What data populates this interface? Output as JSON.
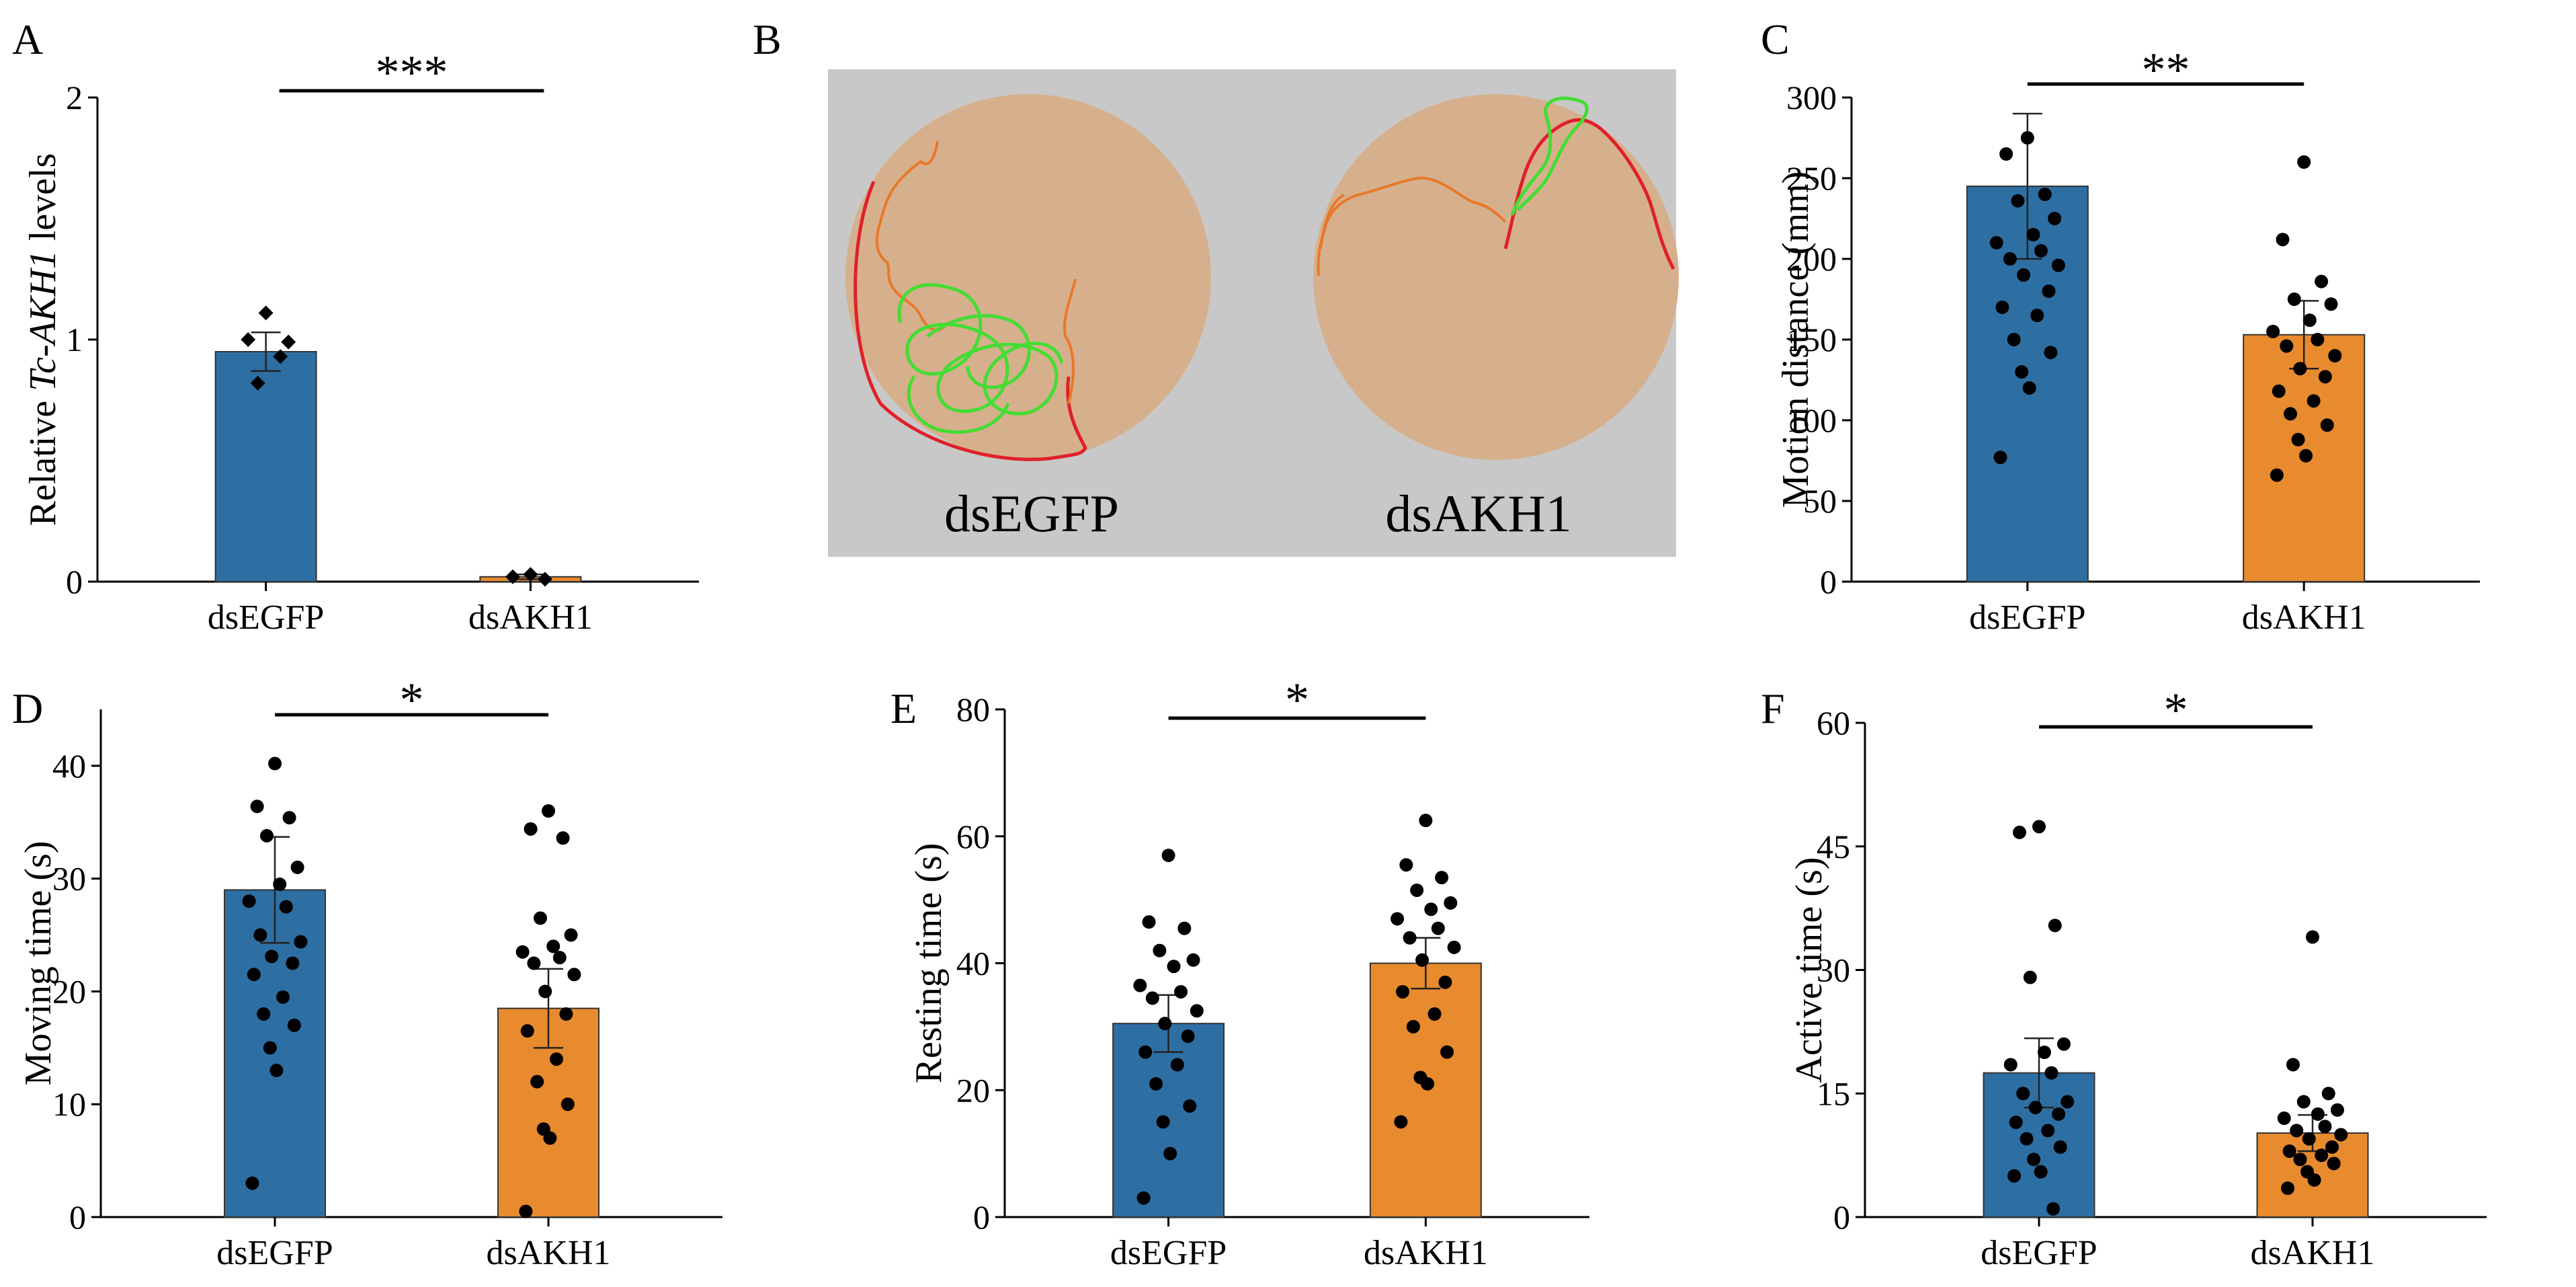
{
  "colors": {
    "dsEGFP": "#2e6fa3",
    "dsAKH1": "#e88a2e",
    "arena_bg": "#c8c8c8",
    "arena_floor": "#d6b08c",
    "track_green": "#44dd33",
    "track_orange": "#e8782a",
    "track_red": "#e0202a"
  },
  "chart_data": [
    {
      "panel": "A",
      "type": "bar",
      "categories": [
        "dsEGFP",
        "dsAKH1"
      ],
      "values": [
        0.95,
        0.02
      ],
      "errors": [
        0.08,
        0.01
      ],
      "ylabel_pre": "Relative ",
      "ylabel_italic": "Tc-AKH1",
      "ylabel_post": "  levels",
      "ylim": [
        0,
        2
      ],
      "yticks": [
        0,
        1,
        2
      ],
      "significance": "***",
      "points": [
        [
          1.11,
          1.0,
          0.93,
          0.82,
          0.99
        ],
        [
          0.03,
          0.02,
          0.01
        ]
      ],
      "marker": "diamond"
    },
    {
      "panel": "C",
      "type": "bar",
      "categories": [
        "dsEGFP",
        "dsAKH1"
      ],
      "values": [
        245,
        153
      ],
      "errors": [
        45,
        21
      ],
      "ylabel": "Motion distance (mm)",
      "ylim": [
        0,
        300
      ],
      "yticks": [
        0,
        50,
        100,
        150,
        200,
        250,
        300
      ],
      "significance": "**",
      "points": [
        [
          275,
          265,
          240,
          236,
          225,
          215,
          210,
          205,
          200,
          196,
          190,
          180,
          170,
          165,
          150,
          142,
          130,
          120,
          77
        ],
        [
          260,
          212,
          186,
          175,
          172,
          162,
          155,
          150,
          146,
          140,
          132,
          127,
          118,
          112,
          104,
          97,
          88,
          78,
          66
        ]
      ],
      "marker": "circle"
    },
    {
      "panel": "D",
      "type": "bar",
      "categories": [
        "dsEGFP",
        "dsAKH1"
      ],
      "values": [
        29,
        18.5
      ],
      "errors": [
        4.7,
        3.5
      ],
      "ylabel": "Moving time (s)",
      "ylim": [
        0,
        45
      ],
      "yticks": [
        0,
        10,
        20,
        30,
        40
      ],
      "significance": "*",
      "points": [
        [
          40.2,
          36.4,
          35.4,
          33.8,
          31.0,
          29.5,
          28.0,
          27.5,
          25.0,
          24.4,
          23.1,
          22.5,
          21.5,
          19.5,
          18.0,
          17.0,
          15.0,
          13.0,
          3.0
        ],
        [
          36.0,
          34.4,
          33.6,
          26.5,
          25.0,
          24.0,
          23.5,
          23.0,
          22.5,
          21.5,
          20.0,
          18.0,
          16.5,
          14.0,
          12.0,
          10.0,
          7.8,
          7.0,
          0.5
        ]
      ],
      "marker": "circle"
    },
    {
      "panel": "E",
      "type": "bar",
      "categories": [
        "dsEGFP",
        "dsAKH1"
      ],
      "values": [
        30.5,
        40
      ],
      "errors": [
        4.5,
        4
      ],
      "ylabel": "Resting time (s)",
      "ylim": [
        0,
        80
      ],
      "yticks": [
        0,
        20,
        40,
        60,
        80
      ],
      "significance": "*",
      "points": [
        [
          57.0,
          46.5,
          45.5,
          42.0,
          40.5,
          39.5,
          36.5,
          35.5,
          34.5,
          32.5,
          30.5,
          28.5,
          26.0,
          24.0,
          21.0,
          17.5,
          15.0,
          10.0,
          3.0
        ],
        [
          62.5,
          55.5,
          53.5,
          51.5,
          49.5,
          48.5,
          47.0,
          45.5,
          44.0,
          42.5,
          40.5,
          37.0,
          35.5,
          32.0,
          30.0,
          26.0,
          22.0,
          21.0,
          15.0
        ]
      ],
      "marker": "circle"
    },
    {
      "panel": "F",
      "type": "bar",
      "categories": [
        "dsEGFP",
        "dsAKH1"
      ],
      "values": [
        17.5,
        10.2
      ],
      "errors": [
        4.2,
        2.2
      ],
      "ylabel": "Active time (s)",
      "ylim": [
        0,
        60
      ],
      "yticks": [
        0,
        15,
        30,
        45,
        60
      ],
      "significance": "*",
      "points": [
        [
          47.4,
          46.7,
          35.4,
          29.1,
          21.0,
          20.0,
          18.5,
          17.5,
          15.0,
          14.0,
          13.3,
          12.5,
          11.5,
          10.5,
          9.5,
          8.5,
          7.0,
          5.5,
          5.0,
          1.0
        ],
        [
          34.0,
          18.5,
          15.0,
          14.0,
          13.0,
          12.5,
          12.0,
          11.0,
          10.5,
          10.0,
          9.5,
          8.5,
          8.0,
          7.5,
          7.0,
          6.5,
          5.5,
          4.5,
          3.5
        ]
      ],
      "marker": "circle"
    }
  ],
  "panel_b": {
    "letter": "B",
    "labels": [
      "dsEGFP",
      "dsAKH1"
    ]
  },
  "letters": {
    "a": "A",
    "c": "C",
    "d": "D",
    "e": "E",
    "f": "F"
  }
}
